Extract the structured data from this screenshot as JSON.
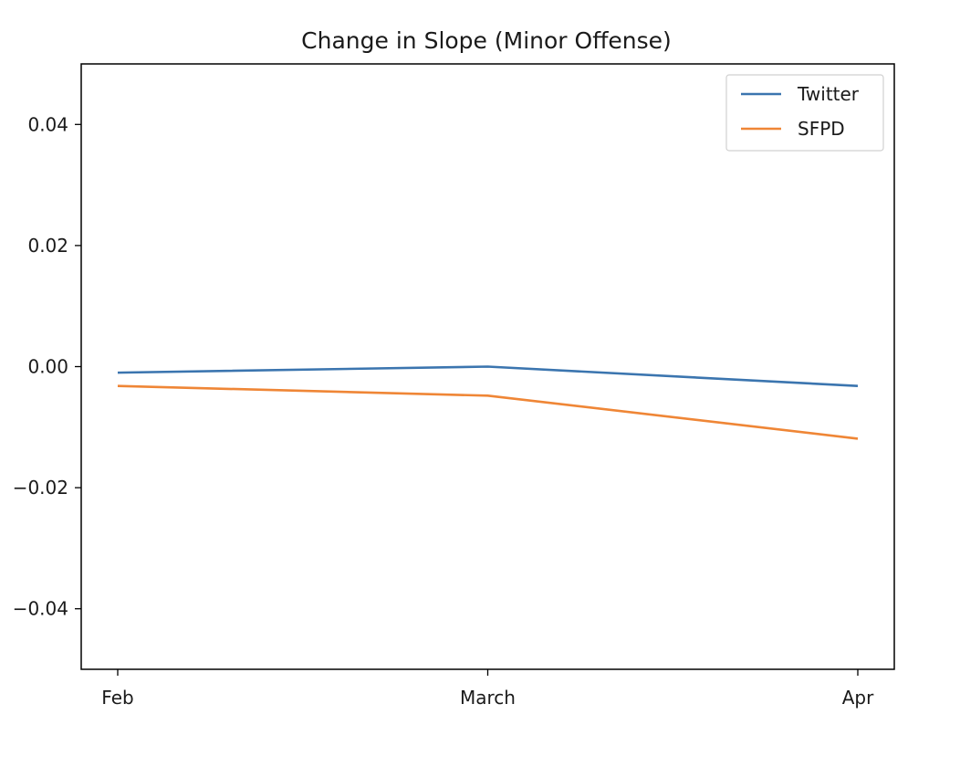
{
  "chart_data": {
    "type": "line",
    "title": "Change in Slope (Minor Offense)",
    "xlabel": "",
    "ylabel": "",
    "categories": [
      "Feb",
      "March",
      "Apr"
    ],
    "ylim": [
      -0.05,
      0.05
    ],
    "yticks": [
      -0.04,
      -0.02,
      0.0,
      0.02,
      0.04
    ],
    "ytick_labels": [
      "−0.04",
      "−0.02",
      "0.00",
      "0.02",
      "0.04"
    ],
    "series": [
      {
        "name": "Twitter",
        "color": "#3b75af",
        "values": [
          -0.001,
          0.0,
          -0.0032
        ]
      },
      {
        "name": "SFPD",
        "color": "#ef8636",
        "values": [
          -0.0032,
          -0.0048,
          -0.0119
        ]
      }
    ],
    "grid": false,
    "legend_position": "top-right"
  }
}
